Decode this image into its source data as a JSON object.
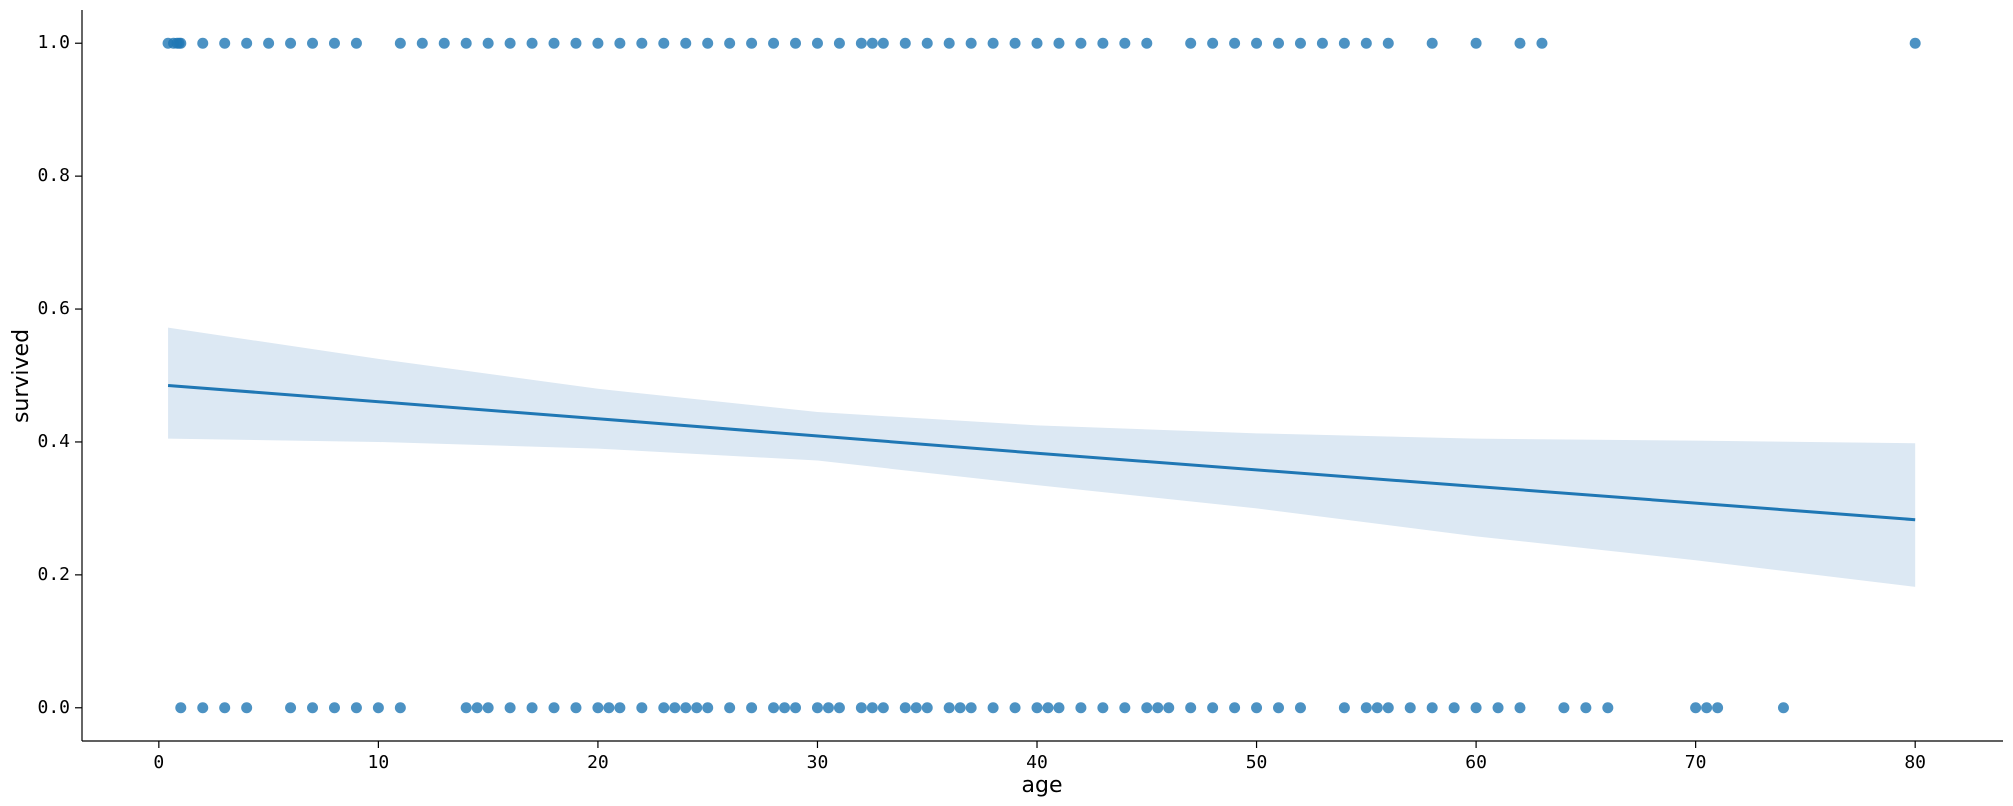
{
  "chart_data": {
    "type": "scatter",
    "xlabel": "age",
    "ylabel": "survived",
    "xlim": [
      -3.5,
      84
    ],
    "ylim": [
      -0.05,
      1.05
    ],
    "xticks": [
      0,
      10,
      20,
      30,
      40,
      50,
      60,
      70,
      80
    ],
    "yticks": [
      {
        "value": 0,
        "label": "0.0"
      },
      {
        "value": 0.2,
        "label": "0.2"
      },
      {
        "value": 0.4,
        "label": "0.4"
      },
      {
        "value": 0.6,
        "label": "0.6"
      },
      {
        "value": 0.8,
        "label": "0.8"
      },
      {
        "value": 1,
        "label": "1.0"
      }
    ],
    "color": "#1f77b4",
    "band_color": "#dce8f3",
    "series": [
      {
        "x": [
          0.42,
          0.67,
          0.83,
          0.92,
          1,
          2,
          3,
          4,
          5,
          6,
          7,
          8,
          9,
          11,
          12,
          13,
          14,
          15,
          16,
          17,
          18,
          19,
          20,
          21,
          22,
          23,
          24,
          25,
          26,
          27,
          28,
          29,
          30,
          31,
          32,
          32.5,
          33,
          34,
          35,
          36,
          37,
          38,
          39,
          40,
          41,
          42,
          43,
          44,
          45,
          47,
          48,
          49,
          50,
          51,
          52,
          53,
          54,
          55,
          56,
          58,
          60,
          62,
          63,
          80
        ],
        "values": [
          1,
          1,
          1,
          1,
          1,
          1,
          1,
          1,
          1,
          1,
          1,
          1,
          1,
          1,
          1,
          1,
          1,
          1,
          1,
          1,
          1,
          1,
          1,
          1,
          1,
          1,
          1,
          1,
          1,
          1,
          1,
          1,
          1,
          1,
          1,
          1,
          1,
          1,
          1,
          1,
          1,
          1,
          1,
          1,
          1,
          1,
          1,
          1,
          1,
          1,
          1,
          1,
          1,
          1,
          1,
          1,
          1,
          1,
          1,
          1,
          1,
          1,
          1,
          1
        ]
      },
      {
        "x": [
          1,
          2,
          3,
          4,
          6,
          7,
          8,
          9,
          10,
          11,
          14,
          14.5,
          15,
          16,
          17,
          18,
          19,
          20,
          20.5,
          21,
          22,
          23,
          23.5,
          24,
          24.5,
          25,
          26,
          27,
          28,
          28.5,
          29,
          30,
          30.5,
          31,
          32,
          32.5,
          33,
          34,
          34.5,
          35,
          36,
          36.5,
          37,
          38,
          39,
          40,
          40.5,
          41,
          42,
          43,
          44,
          45,
          45.5,
          46,
          47,
          48,
          49,
          50,
          51,
          52,
          54,
          55,
          55.5,
          56,
          57,
          58,
          59,
          60,
          61,
          62,
          64,
          65,
          66,
          70,
          70.5,
          71,
          74
        ],
        "values": [
          0,
          0,
          0,
          0,
          0,
          0,
          0,
          0,
          0,
          0,
          0,
          0,
          0,
          0,
          0,
          0,
          0,
          0,
          0,
          0,
          0,
          0,
          0,
          0,
          0,
          0,
          0,
          0,
          0,
          0,
          0,
          0,
          0,
          0,
          0,
          0,
          0,
          0,
          0,
          0,
          0,
          0,
          0,
          0,
          0,
          0,
          0,
          0,
          0,
          0,
          0,
          0,
          0,
          0,
          0,
          0,
          0,
          0,
          0,
          0,
          0,
          0,
          0,
          0,
          0,
          0,
          0,
          0,
          0,
          0,
          0,
          0,
          0,
          0,
          0,
          0,
          0
        ]
      }
    ],
    "fit": {
      "x": [
        0.42,
        20,
        40,
        60,
        80
      ],
      "values": [
        0.485,
        0.435,
        0.383,
        0.333,
        0.283
      ]
    },
    "ci": {
      "x": [
        0.42,
        10,
        20,
        30,
        40,
        50,
        60,
        70,
        80
      ],
      "upper": [
        0.572,
        0.525,
        0.48,
        0.445,
        0.425,
        0.413,
        0.405,
        0.402,
        0.398
      ],
      "lower": [
        0.405,
        0.4,
        0.39,
        0.372,
        0.335,
        0.3,
        0.258,
        0.222,
        0.182
      ]
    }
  }
}
